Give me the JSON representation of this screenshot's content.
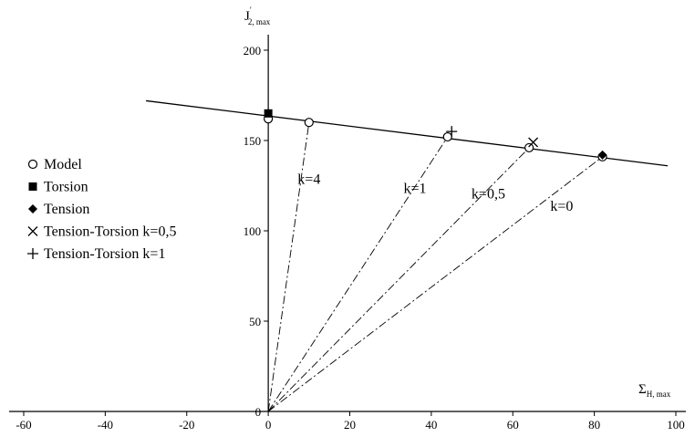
{
  "chart_data": {
    "type": "scatter",
    "title": "",
    "xlabel_main": "Σ",
    "xlabel_sub": "H, max",
    "ylabel_main": "J",
    "ylabel_prime": "′",
    "ylabel_sub": "2, max",
    "xlim": [
      -60,
      100
    ],
    "ylim": [
      0,
      200
    ],
    "x_ticks": [
      -60,
      -40,
      -20,
      0,
      20,
      40,
      60,
      80,
      100
    ],
    "y_ticks": [
      0,
      50,
      100,
      150,
      200
    ],
    "grid": false,
    "legend_position": "left",
    "fit_line": {
      "x1": -30,
      "y1": 172,
      "x2": 98,
      "y2": 136
    },
    "series": [
      {
        "name": "Model",
        "marker": "open-circle",
        "points": [
          [
            0,
            162
          ],
          [
            10,
            160
          ],
          [
            44,
            152
          ],
          [
            64,
            146
          ],
          [
            82,
            141
          ]
        ]
      },
      {
        "name": "Torsion",
        "marker": "filled-square",
        "points": [
          [
            0,
            165
          ]
        ]
      },
      {
        "name": "Tension",
        "marker": "filled-diamond",
        "points": [
          [
            82,
            142
          ]
        ]
      },
      {
        "name": "Tension-Torsion k=0,5",
        "marker": "x-cross",
        "points": [
          [
            65,
            149
          ]
        ]
      },
      {
        "name": "Tension-Torsion k=1",
        "marker": "plus",
        "points": [
          [
            45,
            155
          ]
        ]
      }
    ],
    "rays": [
      {
        "label": "k=4",
        "end": [
          10,
          160
        ],
        "label_at": [
          10,
          126
        ]
      },
      {
        "label": "k=1",
        "end": [
          44,
          152
        ],
        "label_at": [
          36,
          121
        ]
      },
      {
        "label": "k=0,5",
        "end": [
          64,
          146
        ],
        "label_at": [
          54,
          118
        ]
      },
      {
        "label": "k=0",
        "end": [
          82,
          141
        ],
        "label_at": [
          72,
          111
        ]
      }
    ]
  }
}
